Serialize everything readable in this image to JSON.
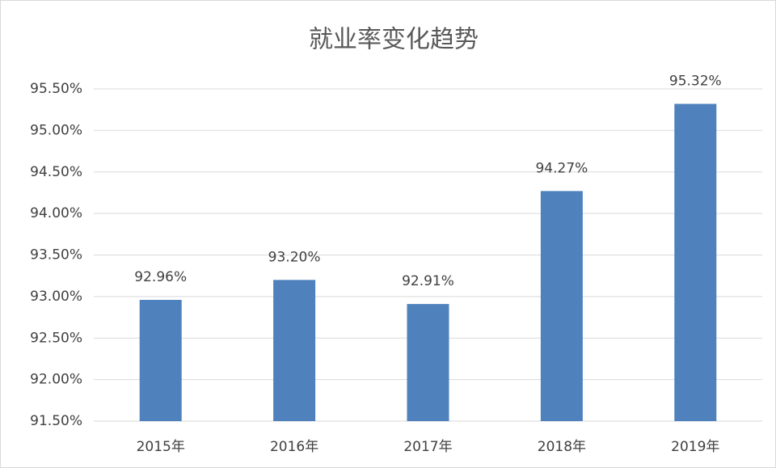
{
  "chart_data": {
    "type": "bar",
    "title": "就业率变化趋势",
    "categories": [
      "2015年",
      "2016年",
      "2017年",
      "2018年",
      "2019年"
    ],
    "values": [
      92.96,
      93.2,
      92.91,
      94.27,
      95.32
    ],
    "value_labels": [
      "92.96%",
      "93.20%",
      "92.91%",
      "94.27%",
      "95.32%"
    ],
    "color": "#4f81bd",
    "ylim": [
      91.5,
      95.5
    ],
    "yticks": [
      {
        "value": 91.5,
        "label": "91.50%"
      },
      {
        "value": 92,
        "label": "92.00%"
      },
      {
        "value": 92.5,
        "label": "92.50%"
      },
      {
        "value": 93,
        "label": "93.00%"
      },
      {
        "value": 93.5,
        "label": "93.50%"
      },
      {
        "value": 94,
        "label": "94.00%"
      },
      {
        "value": 94.5,
        "label": "94.50%"
      },
      {
        "value": 95,
        "label": "95.00%"
      },
      {
        "value": 95.5,
        "label": "95.50%"
      }
    ],
    "grid": true
  }
}
